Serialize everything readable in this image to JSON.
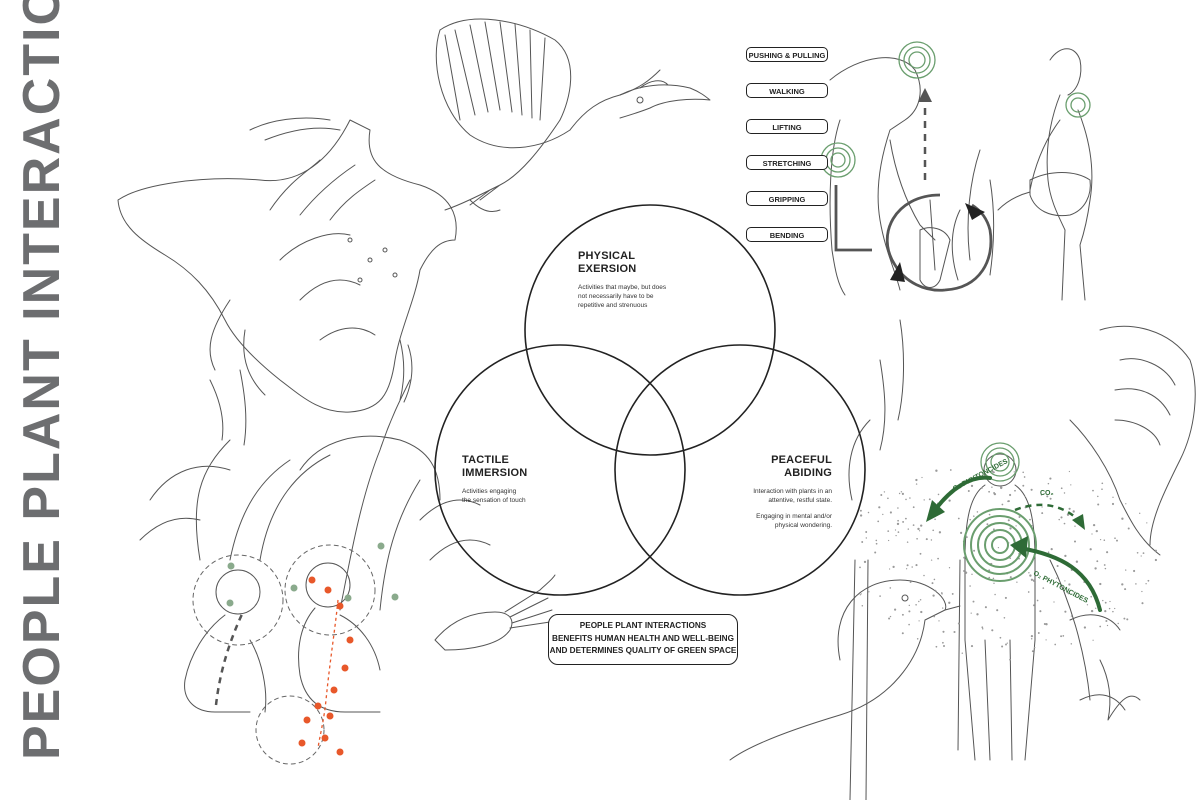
{
  "title": "PEOPLE PLANT INTERACTION",
  "venn": {
    "physical": {
      "title_line1": "PHYSICAL",
      "title_line2": "EXERSION",
      "desc_line1": "Activities that maybe, but does",
      "desc_line2": "not necessarily have to be",
      "desc_line3": "repetitive and strenuous"
    },
    "tactile": {
      "title_line1": "TACTILE",
      "title_line2": "IMMERSION",
      "desc_line1": "Activities engaging",
      "desc_line2": "the sensation of touch"
    },
    "peaceful": {
      "title_line1": "PEACEFUL",
      "title_line2": "ABIDING",
      "desc_line1": "Interaction with plants in an",
      "desc_line2": "attentive, restful state.",
      "desc_line3": "Engaging in mental and/or",
      "desc_line4": "physical wondering."
    }
  },
  "activities": [
    "PUSHING & PULLING",
    "WALKING",
    "LIFTING",
    "STRETCHING",
    "GRIPPING",
    "BENDING"
  ],
  "banner": {
    "line1": "PEOPLE PLANT INTERACTIONS",
    "line2": "BENEFITS HUMAN HEALTH AND WELL-BEING",
    "line3": "AND DETERMINES QUALITY OF GREEN SPACE"
  },
  "labels": {
    "phytoncides_top": "O₂ PHYTONCIDES",
    "co2": "CO₂",
    "phytoncides_bottom": "O₂ PHYTONCIDES"
  },
  "colors": {
    "accent_green": "#2e6b36",
    "accent_orange": "#e8582a",
    "title_gray": "#6d6e70",
    "line": "#222222"
  }
}
